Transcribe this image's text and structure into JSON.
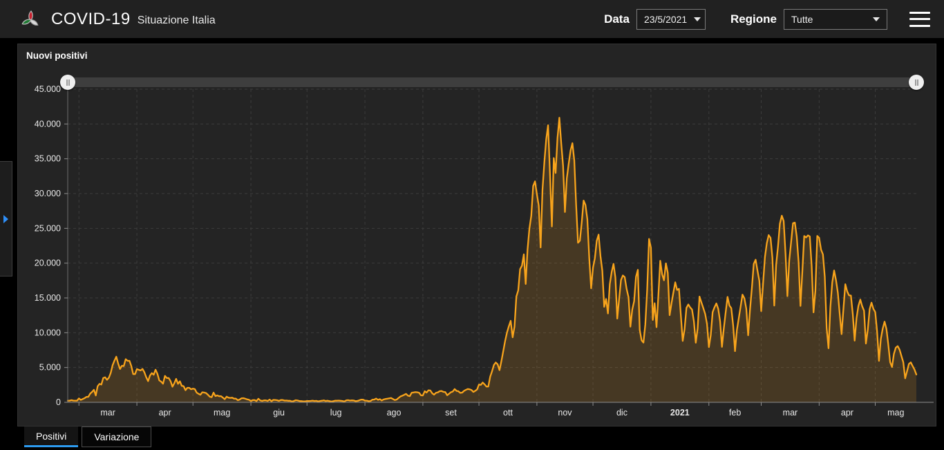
{
  "header": {
    "title": "COVID-19",
    "subtitle": "Situazione Italia",
    "date_label": "Data",
    "date_value": "23/5/2021",
    "region_label": "Regione",
    "region_value": "Tutte"
  },
  "icons": {
    "logo": "protezione-civile-triskelion",
    "date_caret": "chevron-down-icon",
    "region_caret": "chevron-down-icon",
    "menu": "hamburger-icon",
    "expand_panel": "chevron-right-icon",
    "slider_handle": "drag-handle-icon"
  },
  "tabs": [
    {
      "label": "Positivi",
      "active": true
    },
    {
      "label": "Variazione",
      "active": false
    }
  ],
  "chart_data": {
    "type": "area",
    "title": "Nuovi positivi",
    "xlabel": "",
    "ylabel": "",
    "ylim": [
      0,
      45000
    ],
    "grid": true,
    "legend": "none",
    "colors": {
      "line": "#f8a41c",
      "fill": "rgba(248,164,28,0.16)",
      "grid": "#3c3c3c",
      "axis": "#909090",
      "text": "#e8e8e8"
    },
    "y_ticks": [
      "0",
      "5.000",
      "10.000",
      "15.000",
      "20.000",
      "25.000",
      "30.000",
      "35.000",
      "40.000",
      "45.000"
    ],
    "month_boundaries": [
      6,
      37,
      67,
      98,
      128,
      159,
      190,
      220,
      251,
      281,
      312,
      343,
      371,
      402,
      432
    ],
    "x_labels": [
      {
        "label": "mar",
        "from": 6,
        "to": 37,
        "bold": false
      },
      {
        "label": "apr",
        "from": 37,
        "to": 67,
        "bold": false
      },
      {
        "label": "mag",
        "from": 67,
        "to": 98,
        "bold": false
      },
      {
        "label": "giu",
        "from": 98,
        "to": 128,
        "bold": false
      },
      {
        "label": "lug",
        "from": 128,
        "to": 159,
        "bold": false
      },
      {
        "label": "ago",
        "from": 159,
        "to": 190,
        "bold": false
      },
      {
        "label": "set",
        "from": 190,
        "to": 220,
        "bold": false
      },
      {
        "label": "ott",
        "from": 220,
        "to": 251,
        "bold": false
      },
      {
        "label": "nov",
        "from": 251,
        "to": 281,
        "bold": false
      },
      {
        "label": "dic",
        "from": 281,
        "to": 312,
        "bold": false
      },
      {
        "label": "2021",
        "from": 312,
        "to": 343,
        "bold": true
      },
      {
        "label": "feb",
        "from": 343,
        "to": 371,
        "bold": false
      },
      {
        "label": "mar",
        "from": 371,
        "to": 402,
        "bold": false
      },
      {
        "label": "apr",
        "from": 402,
        "to": 432,
        "bold": false
      },
      {
        "label": "mag",
        "from": 432,
        "to": 454,
        "bold": false
      }
    ],
    "series": [
      {
        "name": "Nuovi positivi",
        "values": [
          230,
          240,
          310,
          250,
          240,
          240,
          570,
          340,
          470,
          590,
          770,
          780,
          1250,
          1490,
          1800,
          980,
          2310,
          2650,
          2550,
          3500,
          3600,
          3230,
          3530,
          4210,
          5320,
          5990,
          6560,
          5560,
          4790,
          5250,
          5210,
          6200,
          5960,
          5970,
          5220,
          4050,
          4050,
          4780,
          4670,
          4580,
          4800,
          4320,
          3600,
          3040,
          3840,
          4200,
          3950,
          4690,
          4090,
          3150,
          2970,
          2670,
          3790,
          3490,
          3490,
          3050,
          2250,
          2730,
          3370,
          2650,
          3020,
          2360,
          2320,
          1740,
          2090,
          2090,
          1870,
          1970,
          1900,
          1390,
          1220,
          1080,
          1440,
          1400,
          1330,
          1080,
          800,
          740,
          1400,
          890,
          990,
          870,
          880,
          680,
          450,
          810,
          670,
          640,
          670,
          530,
          530,
          300,
          400,
          590,
          600,
          520,
          420,
          360,
          180,
          320,
          320,
          180,
          520,
          270,
          200,
          280,
          280,
          200,
          400,
          160,
          350,
          340,
          300,
          210,
          330,
          330,
          250,
          260,
          220,
          220,
          110,
          190,
          300,
          260,
          180,
          170,
          130,
          140,
          190,
          180,
          200,
          240,
          190,
          210,
          140,
          190,
          230,
          280,
          190,
          230,
          170,
          110,
          160,
          230,
          230,
          250,
          220,
          190,
          130,
          280,
          310,
          250,
          280,
          260,
          170,
          200,
          290,
          390,
          380,
          240,
          240,
          160,
          190,
          380,
          400,
          550,
          350,
          460,
          260,
          410,
          480,
          520,
          580,
          630,
          480,
          320,
          400,
          640,
          840,
          950,
          1070,
          1210,
          950,
          880,
          1370,
          1410,
          1460,
          1440,
          1370,
          1000,
          980,
          1600,
          1400,
          1730,
          1700,
          1300,
          1100,
          1370,
          1430,
          1600,
          1620,
          1500,
          1460,
          1010,
          1230,
          1450,
          1550,
          1910,
          1640,
          1590,
          1350,
          1390,
          1640,
          1790,
          1910,
          1870,
          1770,
          1490,
          1650,
          1850,
          2550,
          2500,
          2840,
          2580,
          2260,
          2260,
          3680,
          4460,
          5370,
          5720,
          5460,
          4620,
          5900,
          7330,
          8800,
          10010,
          10930,
          11710,
          9340,
          10870,
          15200,
          16080,
          19140,
          19640,
          21270,
          17010,
          21990,
          24990,
          26830,
          31080,
          31760,
          29910,
          28240,
          22250,
          30550,
          34500,
          37810,
          39810,
          32620,
          25270,
          35100,
          32960,
          37980,
          40900,
          37250,
          33980,
          27350,
          32190,
          34280,
          36180,
          37240,
          34770,
          28340,
          22930,
          23230,
          25850,
          29000,
          28350,
          26320,
          20650,
          16380,
          19350,
          20710,
          23220,
          24100,
          21050,
          18890,
          13720,
          14840,
          12760,
          16990,
          18730,
          19900,
          17940,
          12030,
          14840,
          17570,
          18230,
          17990,
          16310,
          15100,
          10870,
          13320,
          14520,
          18040,
          19040,
          10410,
          8910,
          8580,
          11210,
          16200,
          23480,
          22210,
          11830,
          14240,
          10800,
          15380,
          20330,
          18410,
          17530,
          19970,
          18630,
          12530,
          14240,
          15770,
          17250,
          16140,
          16310,
          12540,
          8820,
          10500,
          13570,
          14070,
          13630,
          13330,
          11630,
          8560,
          10590,
          15200,
          14370,
          13570,
          12710,
          11250,
          7930,
          9660,
          12950,
          13650,
          14220,
          13440,
          11640,
          7970,
          10630,
          12950,
          15150,
          13910,
          13530,
          11070,
          7350,
          10390,
          12070,
          13760,
          15480,
          14930,
          13450,
          9630,
          13310,
          16420,
          19890,
          20490,
          18920,
          17450,
          13110,
          17080,
          20880,
          22860,
          24030,
          23640,
          20770,
          13900,
          19750,
          22410,
          25670,
          26820,
          26060,
          21310,
          15260,
          20400,
          23050,
          25740,
          25830,
          23830,
          20160,
          13850,
          18770,
          23900,
          23690,
          23990,
          23840,
          19600,
          12920,
          16020,
          23910,
          23650,
          21930,
          21260,
          18030,
          10680,
          7770,
          13710,
          17220,
          18940,
          17570,
          15750,
          12690,
          9790,
          13450,
          16970,
          15940,
          15370,
          15350,
          12690,
          8860,
          12070,
          13840,
          14760,
          13810,
          13160,
          8440,
          10400,
          13380,
          14320,
          13440,
          12970,
          10170,
          5950,
          9110,
          10580,
          11590,
          10550,
          8290,
          5750,
          5080,
          6950,
          7850,
          8080,
          7570,
          6660,
          5750,
          3450,
          4450,
          5510,
          5740,
          5220,
          4710,
          3990
        ]
      }
    ]
  }
}
